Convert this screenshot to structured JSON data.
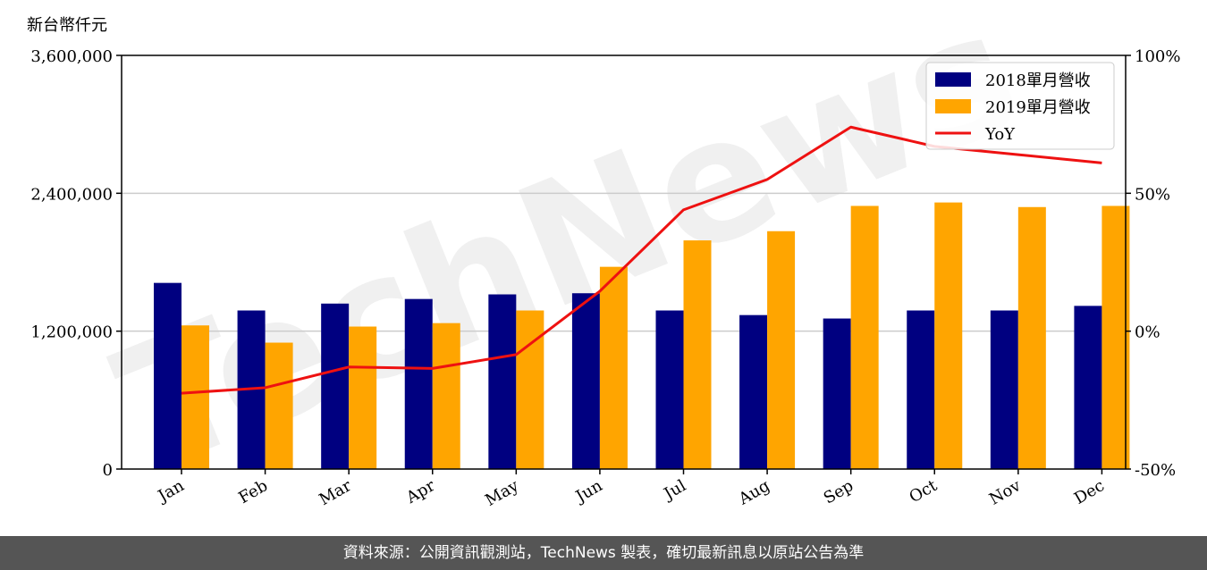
{
  "unit_label": "新台幣仟元",
  "footer_text": "資料來源：公開資訊觀測站，TechNews 製表，確切最新訊息以原站公告為準",
  "watermark": "TechNews",
  "colors": {
    "series2018": "#000080",
    "series2019": "#FFA500",
    "yoy": "#EE1111",
    "grid": "#cccccc",
    "watermark": "#e6e6e6"
  },
  "chart_data": {
    "type": "bar",
    "categories": [
      "Jan",
      "Feb",
      "Mar",
      "Apr",
      "May",
      "Jun",
      "Jul",
      "Aug",
      "Sep",
      "Oct",
      "Nov",
      "Dec"
    ],
    "series": [
      {
        "name": "2018單月營收",
        "values": [
          1620000,
          1380000,
          1440000,
          1480000,
          1520000,
          1530000,
          1380000,
          1340000,
          1310000,
          1380000,
          1380000,
          1420000
        ]
      },
      {
        "name": "2019單月營收",
        "values": [
          1250000,
          1100000,
          1240000,
          1270000,
          1380000,
          1760000,
          1990000,
          2070000,
          2290000,
          2320000,
          2280000,
          2290000
        ]
      }
    ],
    "line_series": {
      "name": "YoY",
      "values": [
        -22.5,
        -20.5,
        -13,
        -13.5,
        -8.5,
        14.5,
        44,
        55,
        74,
        67,
        64,
        61
      ]
    },
    "y_left": {
      "ticks": [
        "0",
        "1,200,000",
        "2,400,000",
        "3,600,000"
      ],
      "tick_values": [
        0,
        1200000,
        2400000,
        3600000
      ],
      "lim": [
        0,
        3600000
      ]
    },
    "y_right": {
      "ticks": [
        "-50%",
        "0%",
        "50%",
        "100%"
      ],
      "tick_values": [
        -50,
        0,
        50,
        100
      ],
      "lim": [
        -50,
        100
      ]
    },
    "grid": "horizontal",
    "legend_position": "top-right"
  }
}
